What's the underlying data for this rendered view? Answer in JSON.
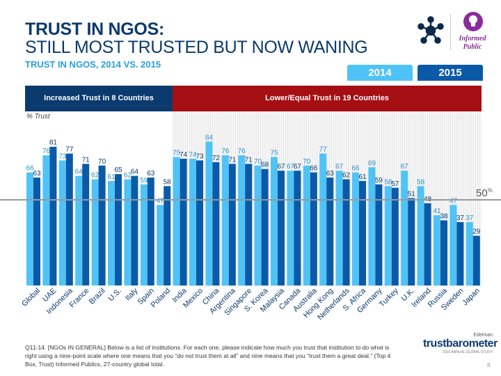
{
  "title_line1": "TRUST IN NGOS:",
  "title_line2": "STILL MOST TRUSTED BUT NOW WANING",
  "subtitle": "TRUST IN NGOS, 2014 VS. 2015",
  "legend": {
    "y2014": "2014",
    "y2015": "2015"
  },
  "group_headers": {
    "increased": "Increased Trust in 8 Countries",
    "lower": "Lower/Equal Trust in 19 Countries"
  },
  "badge": {
    "line1": "Informed",
    "line2": "Public",
    "color": "#8b2a9c"
  },
  "footnote": "Q11-14. [NGOs IN GENERAL] Below is a list of institutions. For each one, please indicate how much you trust that institution to do what is right using a nine-point scale where one means that you “do not trust them at all” and nine means that you “trust them a great deal.” (Top 4 Box, Trust) Informed Publics, 27-country global total.",
  "page_number": "8",
  "brand": {
    "top": "Edelman",
    "main": "trustbarometer",
    "sub": "2015 ANNUAL GLOBAL STUDY"
  },
  "chart_data": {
    "type": "bar",
    "ylabel": "% Trust",
    "ylim": [
      0,
      100
    ],
    "reference_line": {
      "value": 50,
      "label": "50",
      "unit": "%"
    },
    "categories": [
      "Global",
      "UAE",
      "Indonesia",
      "France",
      "Brazil",
      "U.S.",
      "Italy",
      "Spain",
      "Poland",
      "India",
      "Mexico",
      "China",
      "Argentina",
      "Singapore",
      "S. Korea",
      "Malaysia",
      "Canada",
      "Australia",
      "Hong Kong",
      "Netherlands",
      "S. Africa",
      "Germany",
      "Turkey",
      "U.K.",
      "Ireland",
      "Russia",
      "Sweden",
      "Japan"
    ],
    "series": [
      {
        "name": "2014",
        "color": "#4fc3f7",
        "values": [
          66,
          76,
          73,
          64,
          62,
          61,
          62,
          59,
          47,
          75,
          74,
          84,
          76,
          76,
          70,
          75,
          67,
          70,
          77,
          67,
          66,
          69,
          58,
          67,
          58,
          41,
          47,
          37
        ]
      },
      {
        "name": "2015",
        "color": "#0b5aa8",
        "values": [
          63,
          81,
          77,
          71,
          70,
          65,
          64,
          63,
          58,
          74,
          73,
          72,
          71,
          71,
          68,
          67,
          67,
          66,
          63,
          62,
          61,
          59,
          57,
          51,
          48,
          38,
          37,
          29
        ]
      }
    ]
  }
}
